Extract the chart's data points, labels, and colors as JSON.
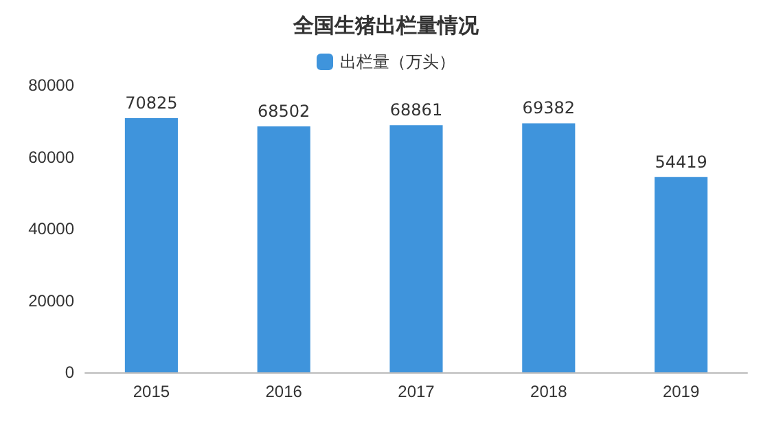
{
  "chart_data": {
    "type": "bar",
    "title": "全国生猪出栏量情况",
    "categories": [
      "2015",
      "2016",
      "2017",
      "2018",
      "2019"
    ],
    "series": [
      {
        "name": "出栏量（万头）",
        "color": "#3f94dc",
        "values": [
          70825,
          68502,
          68861,
          69382,
          54419
        ]
      }
    ],
    "ylim": [
      0,
      80000
    ],
    "yticks": [
      0,
      20000,
      40000,
      60000,
      80000
    ],
    "data_labels": true,
    "legend": "top",
    "grid": false
  }
}
